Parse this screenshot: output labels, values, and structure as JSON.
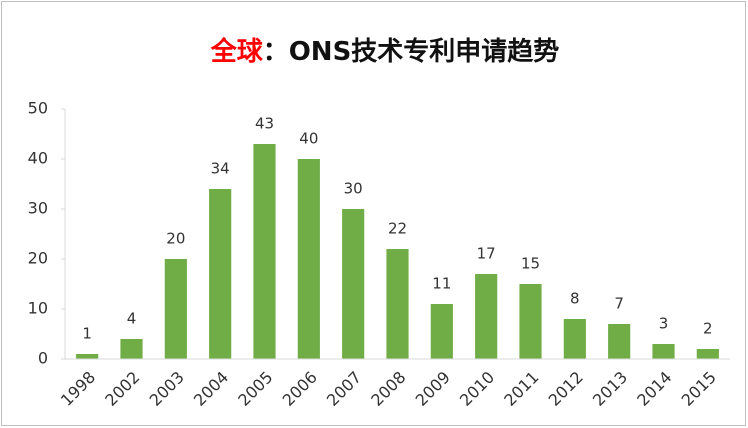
{
  "chart_data": {
    "type": "bar",
    "title": [
      "全球",
      "：ONS技术专利申请趋势"
    ],
    "title_highlight_color": "#ff0000",
    "categories": [
      "1998",
      "2002",
      "2003",
      "2004",
      "2005",
      "2006",
      "2007",
      "2008",
      "2009",
      "2010",
      "2011",
      "2012",
      "2013",
      "2014",
      "2015"
    ],
    "values": [
      1,
      4,
      20,
      34,
      43,
      40,
      30,
      22,
      11,
      17,
      15,
      8,
      7,
      3,
      2
    ],
    "color": "#70ad47",
    "ylim": [
      0,
      50
    ],
    "yticks": [
      0,
      10,
      20,
      30,
      40,
      50
    ],
    "grid": false
  }
}
